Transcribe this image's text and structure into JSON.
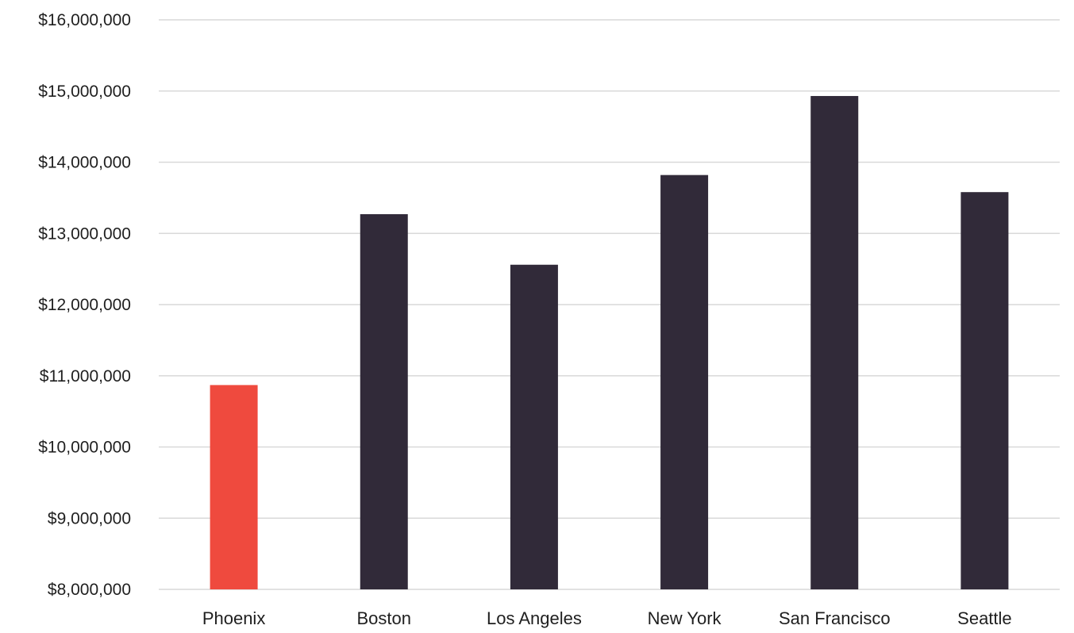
{
  "chart_data": {
    "type": "bar",
    "categories": [
      "Phoenix",
      "Boston",
      "Los Angeles",
      "New York",
      "San Francisco",
      "Seattle"
    ],
    "values": [
      10870000,
      13270000,
      12560000,
      13820000,
      14930000,
      13580000
    ],
    "bar_colors": [
      "#ef4a3e",
      "#312a39",
      "#312a39",
      "#312a39",
      "#312a39",
      "#312a39"
    ],
    "highlight_color": "#ef4a3e",
    "bar_color": "#312a39",
    "ylim": [
      8000000,
      16000000
    ],
    "yticks": [
      8000000,
      9000000,
      10000000,
      11000000,
      12000000,
      13000000,
      14000000,
      15000000,
      16000000
    ],
    "ytick_labels": [
      "$8,000,000",
      "$9,000,000",
      "$10,000,000",
      "$11,000,000",
      "$12,000,000",
      "$13,000,000",
      "$14,000,000",
      "$15,000,000",
      "$16,000,000"
    ],
    "grid": true,
    "legend": "none"
  }
}
